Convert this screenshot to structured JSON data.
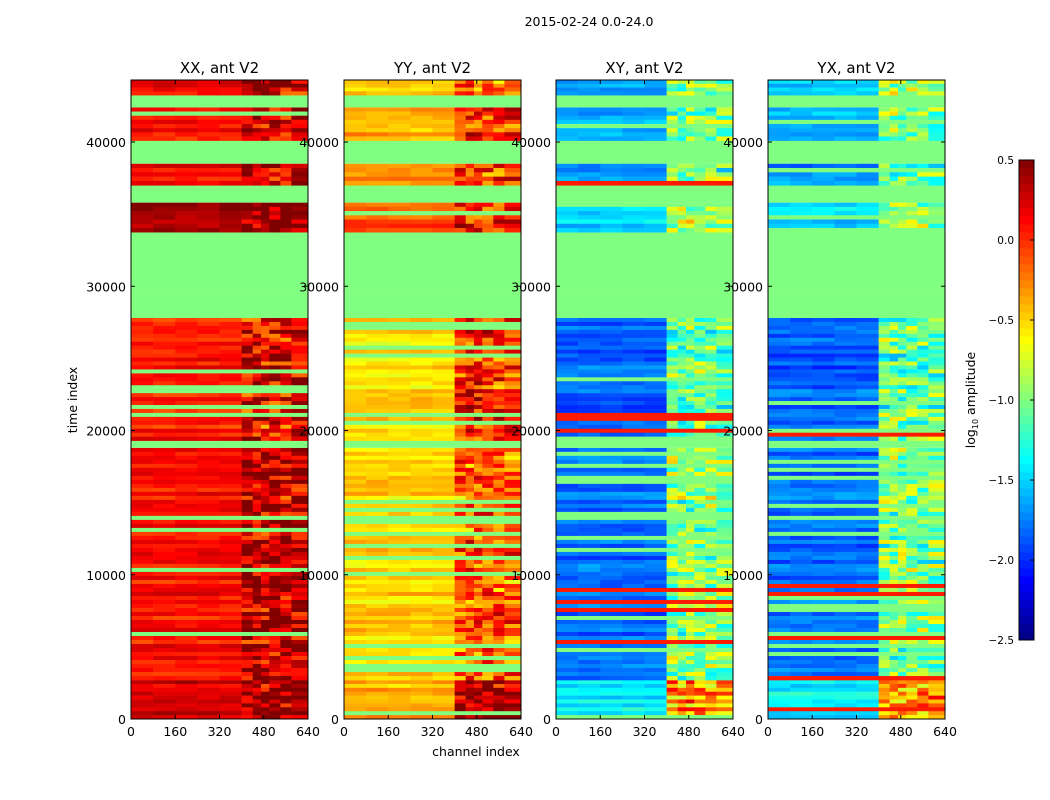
{
  "chart_data": {
    "type": "heatmap",
    "title": "2015-02-24 0.0-24.0",
    "xlabel": "channel index",
    "ylabel": "time index",
    "xlim": [
      0,
      640
    ],
    "ylim": [
      0,
      44300
    ],
    "xticks": [
      "0",
      "160",
      "320",
      "480",
      "640"
    ],
    "xtick_values": [
      0,
      160,
      320,
      480,
      640
    ],
    "yticks": [
      "0",
      "10000",
      "20000",
      "30000",
      "40000"
    ],
    "ytick_values": [
      0,
      10000,
      20000,
      30000,
      40000
    ],
    "colormap": "jet",
    "colorbar": {
      "label": "log10 amplitude",
      "label_main": "log",
      "label_sub": "10",
      "label_rest": " amplitude",
      "range": [
        -2.5,
        0.5
      ],
      "ticks": [
        "0.5",
        "0.0",
        "−0.5",
        "−1.0",
        "−1.5",
        "−2.0",
        "−2.5"
      ],
      "tick_values": [
        0.5,
        0.0,
        -0.5,
        -1.0,
        -1.5,
        -2.0,
        -2.5
      ]
    },
    "time_segments": [
      {
        "t": [
          0,
          2700
        ],
        "flagged": false
      },
      {
        "t": [
          2700,
          18800
        ],
        "flagged": false
      },
      {
        "t": [
          18800,
          19300
        ],
        "flagged": true
      },
      {
        "t": [
          19300,
          27800
        ],
        "flagged": false
      },
      {
        "t": [
          27800,
          29600
        ],
        "flagged": true
      },
      {
        "t": [
          29600,
          33750
        ],
        "flagged": true
      },
      {
        "t": [
          33750,
          35800
        ],
        "flagged": false
      },
      {
        "t": [
          35800,
          37000
        ],
        "flagged": true
      },
      {
        "t": [
          37000,
          38500
        ],
        "flagged": false
      },
      {
        "t": [
          38500,
          40100
        ],
        "flagged": true
      },
      {
        "t": [
          40100,
          42400
        ],
        "flagged": false
      },
      {
        "t": [
          42400,
          43250
        ],
        "flagged": true
      },
      {
        "t": [
          43250,
          44300
        ],
        "flagged": false
      }
    ],
    "flagged_value": -1.0,
    "panels": [
      {
        "title": "XX, ant V2",
        "low_channel_level": [
          0.25,
          0.1,
          -1.0,
          0.05,
          -1.0,
          -1.0,
          0.3,
          -1.0,
          0.15,
          -1.0,
          0.1,
          -1.0,
          0.15
        ],
        "high_channel_level": [
          0.4,
          0.3,
          -1.0,
          0.15,
          -1.0,
          -1.0,
          0.4,
          -1.0,
          0.25,
          -1.0,
          0.2,
          -1.0,
          0.3
        ]
      },
      {
        "title": "YY, ant V2",
        "low_channel_level": [
          -0.4,
          -0.5,
          -1.0,
          -0.55,
          -1.0,
          -1.0,
          -0.1,
          -1.0,
          -0.35,
          -1.0,
          -0.4,
          -1.0,
          -0.5
        ],
        "high_channel_level": [
          0.35,
          -0.15,
          -1.0,
          0.0,
          -1.0,
          -1.0,
          0.05,
          -1.0,
          -0.1,
          -1.0,
          0.0,
          -1.0,
          -0.2
        ]
      },
      {
        "title": "XY, ant V2",
        "low_channel_level": [
          -1.4,
          -1.8,
          -1.0,
          -1.85,
          -1.0,
          -1.0,
          -1.5,
          -1.0,
          -1.7,
          -1.0,
          -1.6,
          -1.0,
          -1.6
        ],
        "high_channel_level": [
          -0.3,
          -1.0,
          -1.0,
          -1.1,
          -1.0,
          -1.0,
          -0.9,
          -1.0,
          -1.1,
          -1.0,
          -1.0,
          -1.0,
          -0.9
        ]
      },
      {
        "title": "YX, ant V2",
        "low_channel_level": [
          -1.4,
          -1.8,
          -1.0,
          -1.85,
          -1.0,
          -1.0,
          -1.5,
          -1.0,
          -1.7,
          -1.0,
          -1.6,
          -1.0,
          -1.6
        ],
        "high_channel_level": [
          -0.3,
          -1.0,
          -1.0,
          -1.1,
          -1.0,
          -1.0,
          -0.9,
          -1.0,
          -1.1,
          -1.0,
          -1.0,
          -1.0,
          -0.9
        ]
      }
    ]
  }
}
